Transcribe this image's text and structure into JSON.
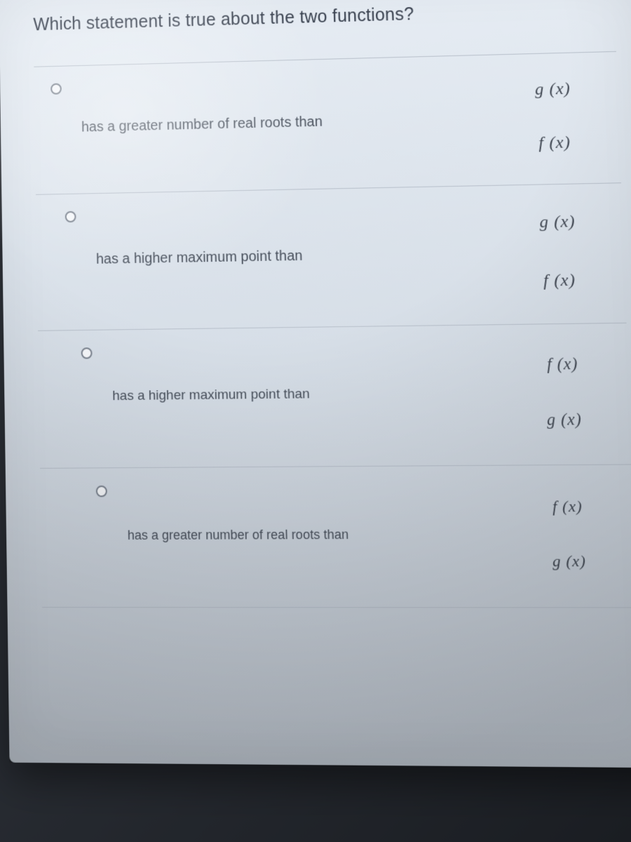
{
  "colors": {
    "screen_bg_top": "#e8eef5",
    "screen_bg_bottom": "#c0c8d2",
    "text_primary": "#3a4250",
    "text_body": "#48505c",
    "divider": "#b8c0cb",
    "radio_border": "#7a828e",
    "math_text": "#3e4550",
    "desk_bg": "#2a2e35"
  },
  "typography": {
    "question_fontsize_pt": 19,
    "option_fontsize_pt": 15,
    "math_fontsize_pt": 18,
    "math_font": "Times New Roman italic"
  },
  "question": {
    "stem": "Which statement is true about the two functions?",
    "options": [
      {
        "text": "has a greater number of real roots than",
        "expr_top": "g (x)",
        "expr_bottom": "f (x)"
      },
      {
        "text": "has a higher maximum point than",
        "expr_top": "g (x)",
        "expr_bottom": "f (x)"
      },
      {
        "text": "has a higher maximum point than",
        "expr_top": "f (x)",
        "expr_bottom": "g (x)"
      },
      {
        "text": "has a greater number of real roots than",
        "expr_top": "f (x)",
        "expr_bottom": "g (x)"
      }
    ]
  }
}
